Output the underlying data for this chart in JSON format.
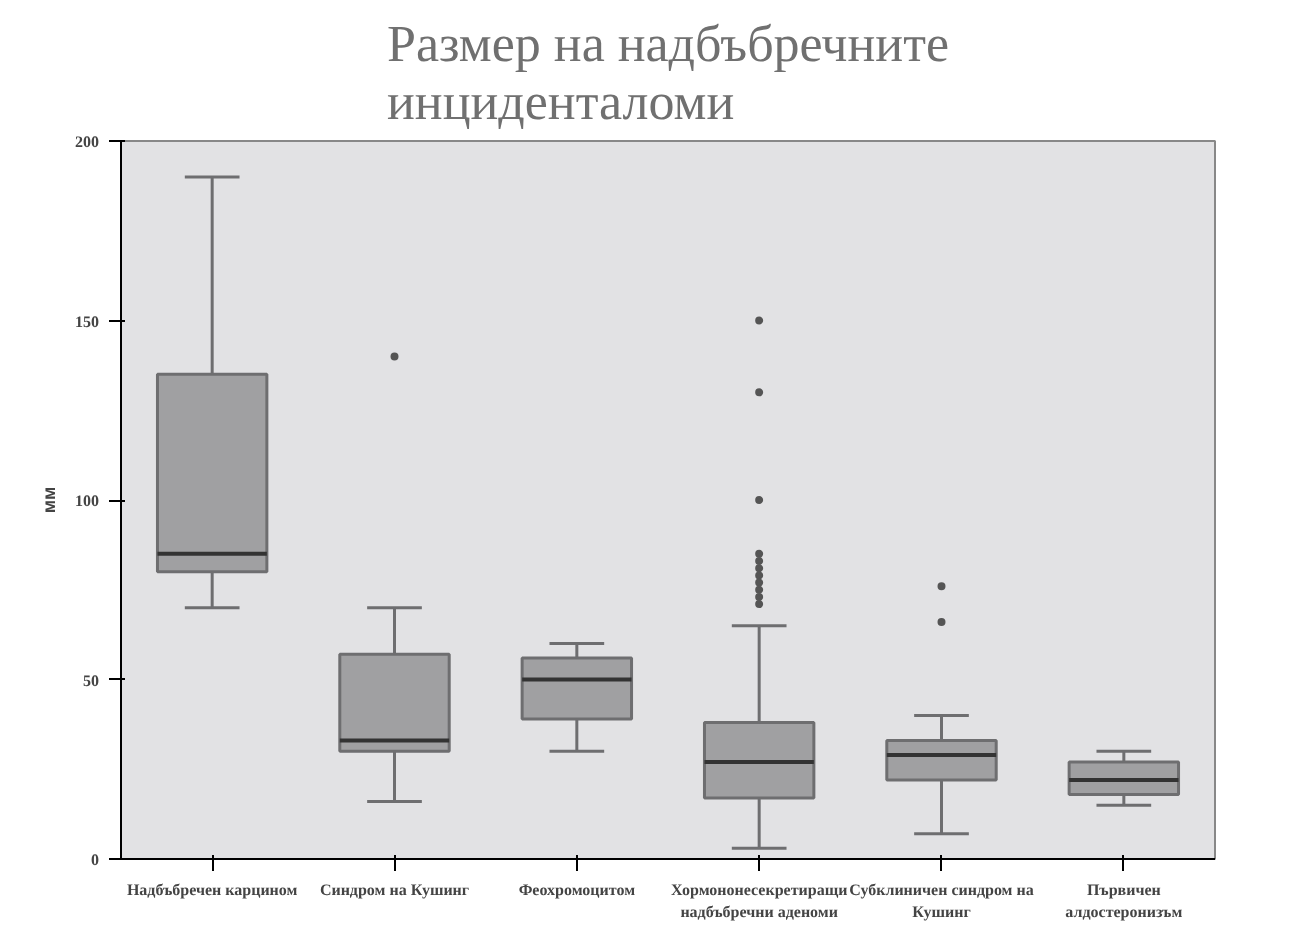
{
  "chart_data": {
    "type": "box",
    "title": "Размер на надбъбречните\nинциденталоми",
    "ylabel": "мм",
    "categories": [
      "Надбъбречен карцином",
      "Синдром на Кушинг",
      "Феохромоцитом",
      "Хормононесекретиращи надбъбречни аденоми",
      "Субклиничен синдром на Кушинг",
      "Първичен алдостеронизъм"
    ],
    "boxes": [
      {
        "low": 70,
        "q1": 80,
        "median": 85,
        "q3": 135,
        "high": 190
      },
      {
        "low": 16,
        "q1": 30,
        "median": 33,
        "q3": 57,
        "high": 70,
        "outliers": [
          140
        ]
      },
      {
        "low": 30,
        "q1": 39,
        "median": 50,
        "q3": 56,
        "high": 60
      },
      {
        "low": 3,
        "q1": 17,
        "median": 27,
        "q3": 38,
        "high": 65,
        "outliers": [
          150,
          130,
          100,
          85,
          83,
          81,
          79,
          77,
          75,
          73,
          71
        ]
      },
      {
        "low": 7,
        "q1": 22,
        "median": 29,
        "q3": 33,
        "high": 40,
        "outliers": [
          76,
          66
        ]
      },
      {
        "low": 15,
        "q1": 18,
        "median": 22,
        "q3": 27,
        "high": 30
      }
    ],
    "color": "#a0a0a2",
    "ylim": [
      0,
      200
    ],
    "yticks": [
      0,
      50,
      100,
      150,
      200
    ],
    "grid": false
  }
}
